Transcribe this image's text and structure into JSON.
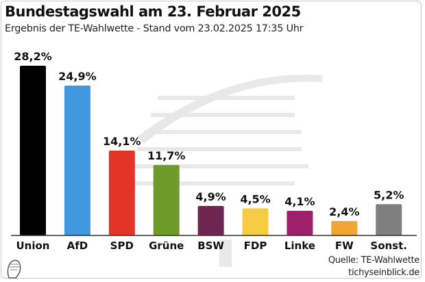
{
  "header": {
    "title": "Bundestagswahl am 23. Februar 2025",
    "subtitle": "Ergebnis der TE-Wahlwette - Stand vom 23.02.2025 17:35 Uhr"
  },
  "footer": {
    "source": "Quelle: TE-Wahlwette",
    "site": "tichyseinblick.de"
  },
  "chart_data": {
    "type": "bar",
    "categories": [
      "Union",
      "AfD",
      "SPD",
      "Grüne",
      "BSW",
      "FDP",
      "Linke",
      "FW",
      "Sonst."
    ],
    "values": [
      28.2,
      24.9,
      14.1,
      11.7,
      4.9,
      4.5,
      4.1,
      2.4,
      5.2
    ],
    "data_labels": [
      "28,2%",
      "24,9%",
      "14,1%",
      "11,7%",
      "4,9%",
      "4,5%",
      "4,1%",
      "2,4%",
      "5,2%"
    ],
    "colors": [
      "#000000",
      "#4298dc",
      "#e4342a",
      "#6e9a2a",
      "#6e2550",
      "#f4cd45",
      "#9e1f6a",
      "#f0a535",
      "#7f7f7f"
    ],
    "title": "",
    "xlabel": "",
    "ylabel": "",
    "ylim": [
      0,
      28.2
    ],
    "grid": false,
    "legend": "none"
  }
}
